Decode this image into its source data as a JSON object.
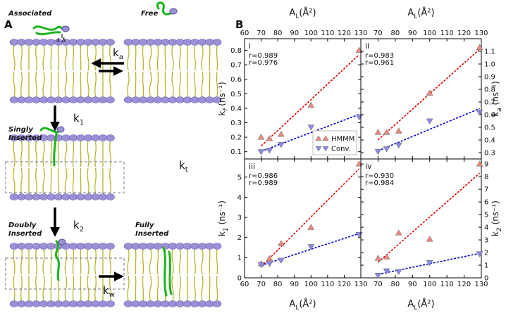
{
  "panel_a": {
    "label": "A",
    "associated": "Associated",
    "free": "Free",
    "distance": "4 Å",
    "singly": [
      "Singly",
      "Inserted"
    ],
    "doubly": [
      "Doubly",
      "Inserted"
    ],
    "fully": [
      "Fully",
      "Inserted"
    ],
    "rates": {
      "a": {
        "base": "k",
        "sub": "a"
      },
      "one": {
        "base": "k",
        "sub": "1"
      },
      "t": {
        "base": "k",
        "sub": "t"
      },
      "two": {
        "base": "k",
        "sub": "2"
      },
      "w": {
        "base": "k",
        "sub": "w"
      }
    }
  },
  "panel_b": {
    "label": "B"
  },
  "chart_data": [
    {
      "type": "scatter",
      "panel": "i",
      "xlabel": {
        "base": "A",
        "sub": "L",
        "rest": "(Å²)"
      },
      "ylabel": {
        "base": "k",
        "sub": "f",
        "rest": " (ns⁻¹)"
      },
      "x": [
        70,
        75,
        82,
        100,
        129
      ],
      "xlim": [
        60,
        130
      ],
      "xticks": [
        60,
        70,
        80,
        90,
        100,
        110,
        120,
        130
      ],
      "ylim": [
        0.05,
        0.88
      ],
      "yticks": [
        0.1,
        0.2,
        0.3,
        0.4,
        0.5,
        0.6,
        0.7,
        0.8
      ],
      "legend": "lower right",
      "series": [
        {
          "name": "HMMM",
          "color": "#e88a80",
          "marker": "triangle-up",
          "fit_color": "#e00000",
          "r_label": "r=0.989",
          "values": [
            0.2,
            0.19,
            0.22,
            0.42,
            0.8
          ]
        },
        {
          "name": "Conv.",
          "color": "#8a8ae6",
          "marker": "triangle-down",
          "fit_color": "#0000cc",
          "r_label": "r=0.976",
          "values": [
            0.1,
            0.11,
            0.15,
            0.27,
            0.34
          ]
        }
      ]
    },
    {
      "type": "scatter",
      "panel": "ii",
      "xlabel": {
        "base": "A",
        "sub": "L",
        "rest": "(Å²)"
      },
      "ylabel": {
        "base": "k",
        "sub": "a",
        "rest": " (ns⁻¹)"
      },
      "x": [
        70,
        75,
        82,
        100,
        129
      ],
      "xlim": [
        60,
        130
      ],
      "xticks": [
        60,
        70,
        80,
        90,
        100,
        110,
        120,
        130
      ],
      "ylim": [
        0.25,
        1.2
      ],
      "yticks": [
        0.3,
        0.4,
        0.5,
        0.6,
        0.7,
        0.8,
        0.9,
        {
          "value": 1,
          "label": "1.0"
        },
        1.1
      ],
      "series": [
        {
          "name": "HMMM",
          "color": "#e88a80",
          "marker": "triangle-up",
          "fit_color": "#e00000",
          "r_label": "r=0.983",
          "values": [
            0.46,
            0.46,
            0.47,
            0.77,
            1.13
          ]
        },
        {
          "name": "Conv.",
          "color": "#8a8ae6",
          "marker": "triangle-down",
          "fit_color": "#0000cc",
          "r_label": "r=0.961",
          "values": [
            0.31,
            0.33,
            0.36,
            0.55,
            0.62
          ]
        }
      ]
    },
    {
      "type": "scatter",
      "panel": "iii",
      "xlabel": {
        "base": "A",
        "sub": "L",
        "rest": "(Å²)"
      },
      "ylabel": {
        "base": "k",
        "sub": "1",
        "rest": " (ns⁻¹)"
      },
      "x": [
        70,
        75,
        82,
        100,
        129
      ],
      "xlim": [
        60,
        130
      ],
      "xticks": [
        60,
        70,
        80,
        90,
        100,
        110,
        120,
        130
      ],
      "ylim": [
        0,
        5.9
      ],
      "yticks": [
        0,
        1,
        2,
        3,
        4,
        5
      ],
      "series": [
        {
          "name": "HMMM",
          "color": "#e88a80",
          "marker": "triangle-up",
          "fit_color": "#e00000",
          "r_label": "r=0.986",
          "values": [
            0.7,
            0.95,
            1.7,
            2.5,
            5.65
          ]
        },
        {
          "name": "Conv.",
          "color": "#8a8ae6",
          "marker": "triangle-down",
          "fit_color": "#0000cc",
          "r_label": "r=0.989",
          "values": [
            0.65,
            0.7,
            0.87,
            1.55,
            2.15
          ]
        }
      ]
    },
    {
      "type": "scatter",
      "panel": "iv",
      "xlabel": {
        "base": "A",
        "sub": "L",
        "rest": "(Å²)"
      },
      "ylabel": {
        "base": "k",
        "sub": "2",
        "rest": " (ns⁻¹)"
      },
      "x": [
        70,
        75,
        82,
        100,
        129
      ],
      "xlim": [
        60,
        130
      ],
      "xticks": [
        60,
        70,
        80,
        90,
        100,
        110,
        120,
        130
      ],
      "ylim": [
        0,
        9.4
      ],
      "yticks": [
        0,
        1,
        2,
        3,
        4,
        5,
        6,
        7,
        8,
        9
      ],
      "series": [
        {
          "name": "HMMM",
          "color": "#e88a80",
          "marker": "triangle-up",
          "fit_color": "#e00000",
          "r_label": "r=0.930",
          "values": [
            1.55,
            1.65,
            3.55,
            3.05,
            9.0
          ]
        },
        {
          "name": "Conv.",
          "color": "#8a8ae6",
          "marker": "triangle-down",
          "fit_color": "#0000cc",
          "r_label": "r=0.984",
          "values": [
            0.2,
            0.55,
            0.5,
            1.2,
            1.9
          ]
        }
      ]
    }
  ]
}
